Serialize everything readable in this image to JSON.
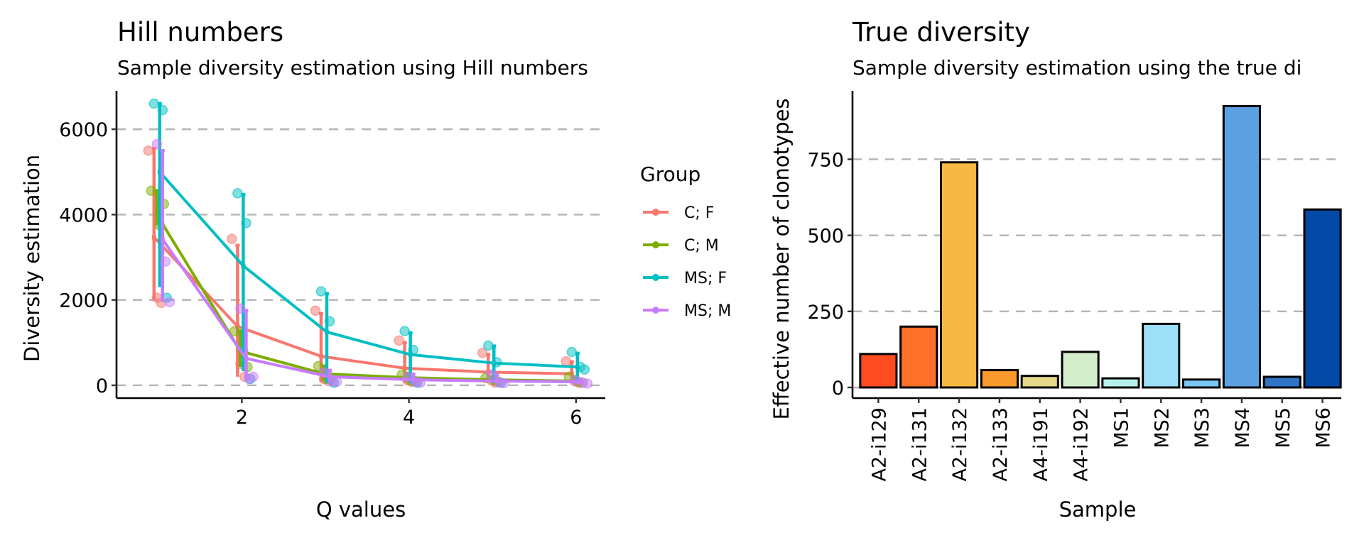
{
  "chart_data": [
    {
      "type": "line",
      "title": "Hill numbers",
      "subtitle": "Sample diversity estimation using Hill numbers",
      "xlabel": "Q values",
      "ylabel": "Diversity estimation",
      "xlim": [
        0.5,
        6.35
      ],
      "ylim": [
        -300,
        6900
      ],
      "xticks": [
        2,
        4,
        6
      ],
      "yticks": [
        0,
        2000,
        4000,
        6000
      ],
      "grid": "horizontal-dashed",
      "legend": {
        "title": "Group",
        "position": "right"
      },
      "x": [
        1,
        2,
        3,
        4,
        5,
        6
      ],
      "series": [
        {
          "name": "C; F",
          "color": "#F8766D",
          "mean": [
            3470,
            1380,
            680,
            400,
            310,
            270
          ],
          "error_low": [
            2000,
            200,
            80,
            60,
            60,
            50
          ],
          "error_high": [
            5550,
            3280,
            1680,
            1000,
            720,
            550
          ],
          "points": [
            [
              5500,
              2050,
              1930
            ],
            [
              3430,
              500,
              200
            ],
            [
              1750,
              150,
              100
            ],
            [
              1050,
              120,
              80
            ],
            [
              760,
              120,
              60
            ],
            [
              560,
              100,
              60
            ]
          ]
        },
        {
          "name": "C; M",
          "color": "#7CAE00",
          "mean": [
            4000,
            800,
            270,
            180,
            130,
            100
          ],
          "error_low": [
            3750,
            430,
            120,
            80,
            70,
            50
          ],
          "error_high": [
            4560,
            1270,
            450,
            280,
            200,
            200
          ],
          "points": [
            [
              4560,
              3750,
              4250
            ],
            [
              1270,
              800,
              430
            ],
            [
              450,
              150,
              150
            ],
            [
              250,
              120,
              100
            ],
            [
              170,
              130,
              90
            ],
            [
              200,
              90,
              60
            ]
          ]
        },
        {
          "name": "MS; F",
          "color": "#00BFC4",
          "mean": [
            5000,
            2800,
            1250,
            720,
            520,
            430
          ],
          "error_low": [
            2300,
            330,
            50,
            50,
            50,
            50
          ],
          "error_high": [
            6600,
            4470,
            2150,
            1230,
            920,
            750
          ],
          "points": [
            [
              6600,
              6450,
              2050
            ],
            [
              4500,
              3800,
              150
            ],
            [
              2200,
              1500,
              60
            ],
            [
              1270,
              830,
              60
            ],
            [
              930,
              540,
              60
            ],
            [
              780,
              430,
              370
            ]
          ]
        },
        {
          "name": "MS; M",
          "color": "#C77CFF",
          "mean": [
            3420,
            630,
            200,
            130,
            100,
            80
          ],
          "error_low": [
            1950,
            130,
            60,
            40,
            40,
            30
          ],
          "error_high": [
            5500,
            1750,
            350,
            260,
            250,
            150
          ],
          "points": [
            [
              5650,
              2900,
              1950
            ],
            [
              1800,
              150,
              200
            ],
            [
              300,
              100,
              80
            ],
            [
              200,
              80,
              60
            ],
            [
              250,
              60,
              50
            ],
            [
              120,
              60,
              40
            ]
          ]
        }
      ]
    },
    {
      "type": "bar",
      "title": "True diversity",
      "subtitle": "Sample diversity estimation using the true di",
      "xlabel": "Sample",
      "ylabel": "Effective number of clonotypes",
      "ylim": [
        -35,
        975
      ],
      "yticks": [
        0,
        250,
        500,
        750
      ],
      "grid": "horizontal-dashed",
      "categories": [
        "A2-i129",
        "A2-i131",
        "A2-i132",
        "A2-i133",
        "A4-i191",
        "A4-i192",
        "MS1",
        "MS2",
        "MS3",
        "MS4",
        "MS5",
        "MS6"
      ],
      "values": [
        110,
        200,
        740,
        57,
        38,
        117,
        30,
        209,
        26,
        925,
        35,
        585
      ],
      "colors": [
        "#FF4B20",
        "#FF7029",
        "#F7B942",
        "#FB9A2C",
        "#E4D889",
        "#D2EECB",
        "#B7F1EC",
        "#9DDFF6",
        "#78C8F4",
        "#5BA1E2",
        "#2F74C5",
        "#0349A6"
      ]
    }
  ]
}
